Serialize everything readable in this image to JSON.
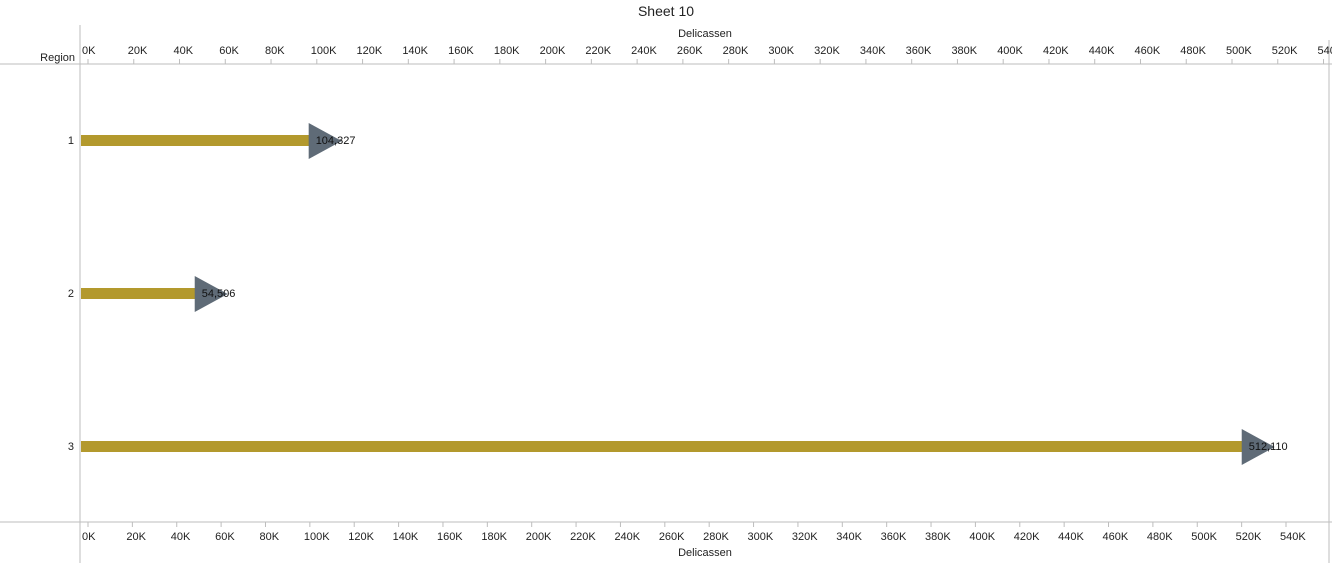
{
  "chart_data": {
    "type": "bar",
    "title": "Sheet 10",
    "xlabel": "Delicassen",
    "ylabel": "Region",
    "categories": [
      "1",
      "2",
      "3"
    ],
    "values": [
      104327,
      54506,
      512110
    ],
    "value_labels": [
      "104,327",
      "54,506",
      "512,110"
    ],
    "xlim": [
      0,
      550000
    ],
    "top_axis_ticks": [
      "0K",
      "20K",
      "40K",
      "60K",
      "80K",
      "100K",
      "120K",
      "140K",
      "160K",
      "180K",
      "200K",
      "220K",
      "240K",
      "260K",
      "280K",
      "300K",
      "320K",
      "340K",
      "360K",
      "380K",
      "400K",
      "420K",
      "440K",
      "460K",
      "480K",
      "500K",
      "520K",
      "540K"
    ],
    "top_axis_tick_values": [
      0,
      20000,
      40000,
      60000,
      80000,
      100000,
      120000,
      140000,
      160000,
      180000,
      200000,
      220000,
      240000,
      260000,
      280000,
      300000,
      320000,
      340000,
      360000,
      380000,
      400000,
      420000,
      440000,
      460000,
      480000,
      500000,
      520000,
      540000
    ],
    "bottom_axis_ticks": [
      "0K",
      "20K",
      "40K",
      "60K",
      "80K",
      "100K",
      "120K",
      "140K",
      "160K",
      "180K",
      "200K",
      "220K",
      "240K",
      "260K",
      "280K",
      "300K",
      "320K",
      "340K",
      "360K",
      "380K",
      "400K",
      "420K",
      "440K",
      "460K",
      "480K",
      "500K",
      "520K",
      "540K"
    ],
    "bottom_axis_tick_values": [
      0,
      20000,
      40000,
      60000,
      80000,
      100000,
      120000,
      140000,
      160000,
      180000,
      200000,
      220000,
      240000,
      260000,
      280000,
      300000,
      320000,
      340000,
      360000,
      380000,
      400000,
      420000,
      440000,
      460000,
      480000,
      500000,
      520000,
      540000
    ],
    "grid": false,
    "colors": {
      "bar": "#b3992d",
      "marker": "#5f6b77",
      "axis": "#bdbdbd"
    }
  }
}
